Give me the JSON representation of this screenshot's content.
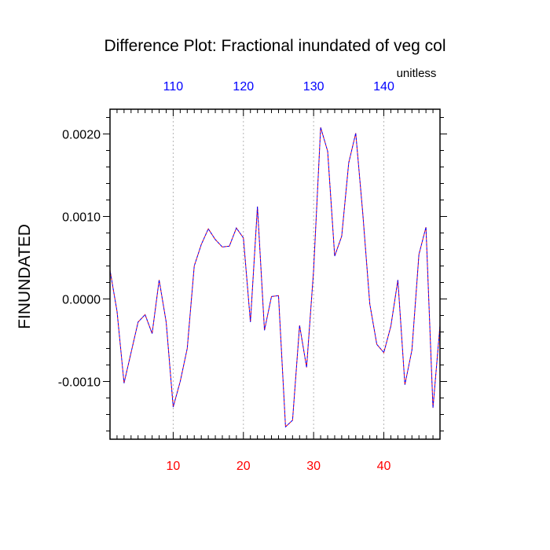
{
  "chart_data": {
    "type": "line",
    "title": "Difference Plot: Fractional inundated of veg col",
    "ylabel": "FINUNDATED",
    "units_label": "unitless",
    "xlim": [
      1,
      48
    ],
    "ylim": [
      -0.0017,
      0.0023
    ],
    "bottom_axis": {
      "tick_values": [
        10,
        20,
        30,
        40
      ],
      "tick_labels": [
        "10",
        "20",
        "30",
        "40"
      ],
      "color": "#ff0000"
    },
    "top_axis": {
      "tick_values": [
        10,
        20,
        30,
        40
      ],
      "tick_labels": [
        "110",
        "120",
        "130",
        "140"
      ],
      "color": "#0000ff"
    },
    "y_ticks": [
      -0.001,
      0.0,
      0.001,
      0.002
    ],
    "y_tick_labels": [
      "-0.0010",
      "0.0000",
      "0.0010",
      "0.0020"
    ],
    "grid": "vertical dotted at major x ticks",
    "series": [
      {
        "name": "series-red-dashed",
        "color": "#ff0000",
        "style": "dashed",
        "x": [
          1,
          2,
          3,
          4,
          5,
          6,
          7,
          8,
          9,
          10,
          11,
          12,
          13,
          14,
          15,
          16,
          17,
          18,
          19,
          20,
          21,
          22,
          23,
          24,
          25,
          26,
          27,
          28,
          29,
          30,
          31,
          32,
          33,
          34,
          35,
          36,
          37,
          38,
          39,
          40,
          41,
          42,
          43,
          44,
          45,
          46,
          47,
          48
        ],
        "values": [
          0.00035,
          -0.00015,
          -0.00102,
          -0.00065,
          -0.00028,
          -0.00019,
          -0.00042,
          0.00023,
          -0.00028,
          -0.00131,
          -0.001,
          -0.0006,
          0.0004,
          0.00066,
          0.00085,
          0.00072,
          0.00063,
          0.00064,
          0.00086,
          0.00074,
          -0.00028,
          0.00112,
          -0.00038,
          3e-05,
          4e-05,
          -0.00155,
          -0.00147,
          -0.00032,
          -0.00083,
          0.00035,
          0.00208,
          0.00179,
          0.00052,
          0.00076,
          0.00165,
          0.00201,
          0.00104,
          -6e-05,
          -0.00055,
          -0.00065,
          -0.00033,
          0.00023,
          -0.00104,
          -0.00062,
          0.00054,
          0.00087,
          -0.00132,
          -0.00032
        ]
      },
      {
        "name": "series-blue-dashed",
        "color": "#0000ff",
        "style": "dashed",
        "x": [
          1,
          2,
          3,
          4,
          5,
          6,
          7,
          8,
          9,
          10,
          11,
          12,
          13,
          14,
          15,
          16,
          17,
          18,
          19,
          20,
          21,
          22,
          23,
          24,
          25,
          26,
          27,
          28,
          29,
          30,
          31,
          32,
          33,
          34,
          35,
          36,
          37,
          38,
          39,
          40,
          41,
          42,
          43,
          44,
          45,
          46,
          47,
          48
        ],
        "values": [
          0.00035,
          -0.00015,
          -0.00102,
          -0.00065,
          -0.00028,
          -0.00019,
          -0.00042,
          0.00023,
          -0.00028,
          -0.00131,
          -0.001,
          -0.0006,
          0.0004,
          0.00066,
          0.00085,
          0.00072,
          0.00063,
          0.00064,
          0.00086,
          0.00074,
          -0.00028,
          0.00112,
          -0.00038,
          3e-05,
          4e-05,
          -0.00155,
          -0.00147,
          -0.00032,
          -0.00083,
          0.00035,
          0.00208,
          0.00179,
          0.00052,
          0.00076,
          0.00165,
          0.00201,
          0.00104,
          -6e-05,
          -0.00055,
          -0.00065,
          -0.00033,
          0.00023,
          -0.00104,
          -0.00062,
          0.00054,
          0.00087,
          -0.00132,
          -0.00032
        ]
      }
    ]
  }
}
